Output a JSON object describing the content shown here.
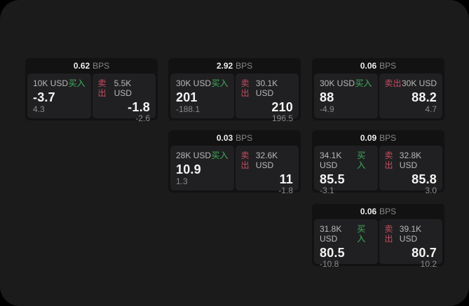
{
  "colors": {
    "page_background": "#000000",
    "window_background": "#1b1b1c",
    "card_background": "#121213",
    "panel_background": "#202022",
    "buy_green": "#3fae5c",
    "sell_red": "#c84c60",
    "primary_text": "#f4f4f4",
    "muted_text": "#8b8b8b"
  },
  "cards": [
    {
      "bps_value": "0.62",
      "bps_unit": "BPS",
      "buy": {
        "size": "10K USD",
        "side_label": "买入",
        "price": "-3.7",
        "delta": "4.3"
      },
      "sell": {
        "side_label": "卖出",
        "size": "5.5K USD",
        "price": "-1.8",
        "delta": "-2.6"
      }
    },
    {
      "bps_value": "2.92",
      "bps_unit": "BPS",
      "buy": {
        "size": "30K USD",
        "side_label": "买入",
        "price": "201",
        "delta": "-188.1"
      },
      "sell": {
        "side_label": "卖出",
        "size": "30.1K USD",
        "price": "210",
        "delta": "196.5"
      }
    },
    {
      "bps_value": "0.06",
      "bps_unit": "BPS",
      "buy": {
        "size": "30K USD",
        "side_label": "买入",
        "price": "88",
        "delta": "-4.9"
      },
      "sell": {
        "side_label": "卖出",
        "size": "30K USD",
        "price": "88.2",
        "delta": "4.7"
      }
    },
    {
      "bps_value": "0.03",
      "bps_unit": "BPS",
      "buy": {
        "size": "28K USD",
        "side_label": "买入",
        "price": "10.9",
        "delta": "1.3"
      },
      "sell": {
        "side_label": "卖出",
        "size": "32.6K USD",
        "price": "11",
        "delta": "-1.8"
      }
    },
    {
      "bps_value": "0.09",
      "bps_unit": "BPS",
      "buy": {
        "size": "34.1K USD",
        "side_label": "买入",
        "price": "85.5",
        "delta": "-3.1"
      },
      "sell": {
        "side_label": "卖出",
        "size": "32.8K USD",
        "price": "85.8",
        "delta": "3.0"
      }
    },
    {
      "bps_value": "0.06",
      "bps_unit": "BPS",
      "buy": {
        "size": "31.8K USD",
        "side_label": "买入",
        "price": "80.5",
        "delta": "-10.8"
      },
      "sell": {
        "side_label": "卖出",
        "size": "39.1K USD",
        "price": "80.7",
        "delta": "10.2"
      }
    }
  ]
}
